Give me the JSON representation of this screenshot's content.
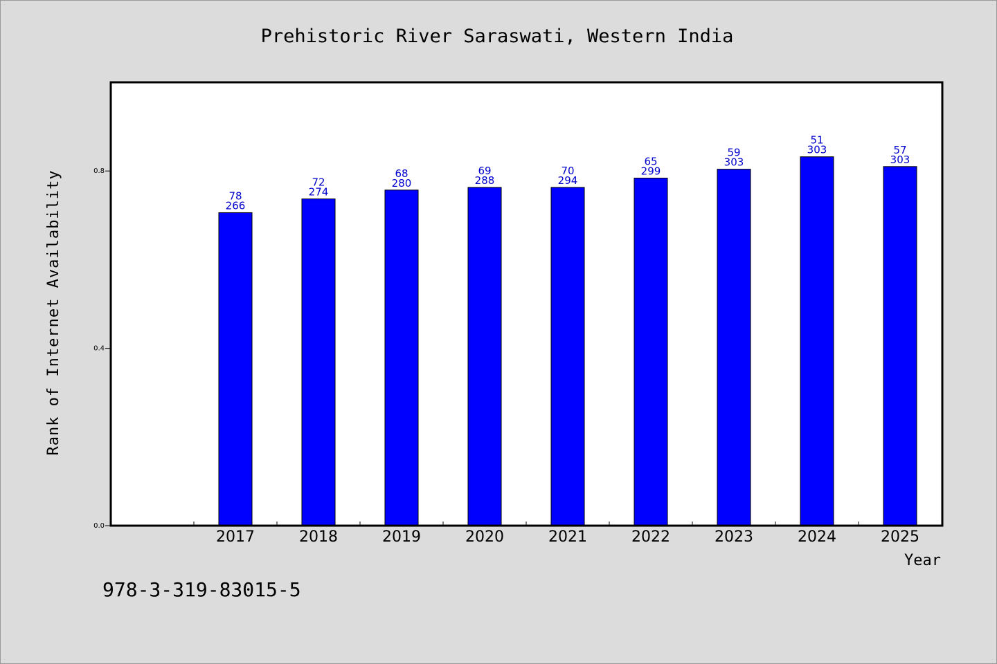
{
  "chart_data": {
    "type": "bar",
    "title": "Prehistoric River Saraswati, Western India",
    "xlabel": "Year",
    "ylabel": "Rank of Internet Availability",
    "categories": [
      "2017",
      "2018",
      "2019",
      "2020",
      "2021",
      "2022",
      "2023",
      "2024",
      "2025"
    ],
    "values": [
      0.706,
      0.737,
      0.757,
      0.763,
      0.763,
      0.784,
      0.804,
      0.832,
      0.81
    ],
    "labels_top": [
      "78",
      "72",
      "68",
      "69",
      "70",
      "65",
      "59",
      "51",
      "57"
    ],
    "labels_bottom": [
      "266",
      "274",
      "280",
      "288",
      "294",
      "299",
      "303",
      "303",
      "303"
    ],
    "ylim": [
      0,
      1.0
    ],
    "yticks": [
      "0.0",
      "0.4",
      "0.8"
    ],
    "ytick_values": [
      0,
      0.4,
      0.8
    ],
    "grid": false,
    "bar_color": "#0000ff",
    "label_color": "#0000cc"
  },
  "footer": {
    "isbn": "978-3-319-83015-5"
  }
}
